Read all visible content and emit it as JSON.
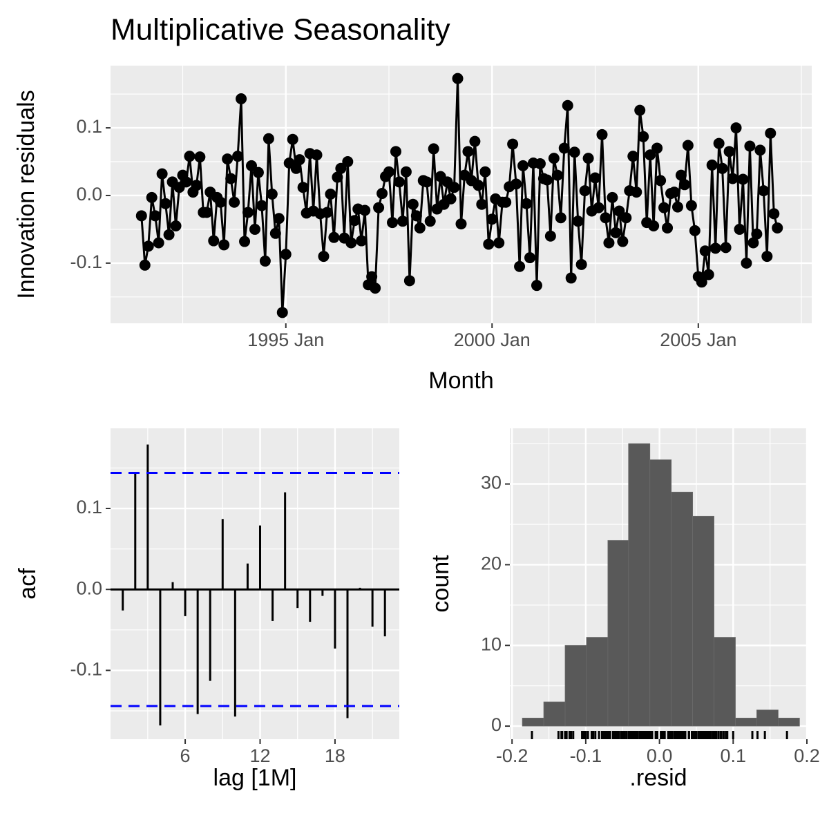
{
  "chart_data": [
    {
      "type": "line",
      "title": "Multiplicative Seasonality",
      "xlabel": "Month",
      "ylabel": "Innovation residuals",
      "color": "#000000",
      "x": [
        "1991 Jul",
        "1991 Aug",
        "1991 Sep",
        "1991 Oct",
        "1991 Nov",
        "1991 Dec",
        "1992 Jan",
        "1992 Feb",
        "1992 Mar",
        "1992 Apr",
        "1992 May",
        "1992 Jun",
        "1992 Jul",
        "1992 Aug",
        "1992 Sep",
        "1992 Oct",
        "1992 Nov",
        "1992 Dec",
        "1993 Jan",
        "1993 Feb",
        "1993 Mar",
        "1993 Apr",
        "1993 May",
        "1993 Jun",
        "1993 Jul",
        "1993 Aug",
        "1993 Sep",
        "1993 Oct",
        "1993 Nov",
        "1993 Dec",
        "1994 Jan",
        "1994 Feb",
        "1994 Mar",
        "1994 Apr",
        "1994 May",
        "1994 Jun",
        "1994 Jul",
        "1994 Aug",
        "1994 Sep",
        "1994 Oct",
        "1994 Nov",
        "1994 Dec",
        "1995 Jan",
        "1995 Feb",
        "1995 Mar",
        "1995 Apr",
        "1995 May",
        "1995 Jun",
        "1995 Jul",
        "1995 Aug",
        "1995 Sep",
        "1995 Oct",
        "1995 Nov",
        "1995 Dec",
        "1996 Jan",
        "1996 Feb",
        "1996 Mar",
        "1996 Apr",
        "1996 May",
        "1996 Jun",
        "1996 Jul",
        "1996 Aug",
        "1996 Sep",
        "1996 Oct",
        "1996 Nov",
        "1996 Dec",
        "1997 Jan",
        "1997 Feb",
        "1997 Mar",
        "1997 Apr",
        "1997 May",
        "1997 Jun",
        "1997 Jul",
        "1997 Aug",
        "1997 Sep",
        "1997 Oct",
        "1997 Nov",
        "1997 Dec",
        "1998 Jan",
        "1998 Feb",
        "1998 Mar",
        "1998 Apr",
        "1998 May",
        "1998 Jun",
        "1998 Jul",
        "1998 Aug",
        "1998 Sep",
        "1998 Oct",
        "1998 Nov",
        "1998 Dec",
        "1999 Jan",
        "1999 Feb",
        "1999 Mar",
        "1999 Apr",
        "1999 May",
        "1999 Jun",
        "1999 Jul",
        "1999 Aug",
        "1999 Sep",
        "1999 Oct",
        "1999 Nov",
        "1999 Dec",
        "2000 Jan",
        "2000 Feb",
        "2000 Mar",
        "2000 Apr",
        "2000 May",
        "2000 Jun",
        "2000 Jul",
        "2000 Aug",
        "2000 Sep",
        "2000 Oct",
        "2000 Nov",
        "2000 Dec",
        "2001 Jan",
        "2001 Feb",
        "2001 Mar",
        "2001 Apr",
        "2001 May",
        "2001 Jun",
        "2001 Jul",
        "2001 Aug",
        "2001 Sep",
        "2001 Oct",
        "2001 Nov",
        "2001 Dec",
        "2002 Jan",
        "2002 Feb",
        "2002 Mar",
        "2002 Apr",
        "2002 May",
        "2002 Jun",
        "2002 Jul",
        "2002 Aug",
        "2002 Sep",
        "2002 Oct",
        "2002 Nov",
        "2002 Dec",
        "2003 Jan",
        "2003 Feb",
        "2003 Mar",
        "2003 Apr",
        "2003 May",
        "2003 Jun",
        "2003 Jul",
        "2003 Aug",
        "2003 Sep",
        "2003 Oct",
        "2003 Nov",
        "2003 Dec",
        "2004 Jan",
        "2004 Feb",
        "2004 Mar",
        "2004 Apr",
        "2004 May",
        "2004 Jun",
        "2004 Jul",
        "2004 Aug",
        "2004 Sep",
        "2004 Oct",
        "2004 Nov",
        "2004 Dec",
        "2005 Jan",
        "2005 Feb",
        "2005 Mar",
        "2005 Apr",
        "2005 May",
        "2005 Jun",
        "2005 Jul",
        "2005 Aug",
        "2005 Sep",
        "2005 Oct",
        "2005 Nov",
        "2005 Dec",
        "2006 Jan",
        "2006 Feb",
        "2006 Mar",
        "2006 Apr",
        "2006 May",
        "2006 Jun",
        "2006 Jul",
        "2006 Aug",
        "2006 Sep",
        "2006 Oct",
        "2006 Nov",
        "2006 Dec"
      ],
      "values": [
        -0.03,
        -0.103,
        -0.075,
        -0.003,
        -0.03,
        -0.07,
        0.032,
        -0.012,
        -0.058,
        0.02,
        -0.045,
        0.012,
        0.03,
        0.02,
        0.058,
        0.005,
        0.015,
        0.057,
        -0.025,
        -0.025,
        0.005,
        -0.067,
        -0.003,
        -0.01,
        -0.073,
        0.054,
        0.025,
        -0.01,
        0.058,
        0.143,
        -0.068,
        -0.025,
        0.044,
        -0.05,
        0.034,
        -0.015,
        -0.097,
        0.084,
        0.002,
        -0.056,
        -0.034,
        -0.173,
        -0.087,
        0.048,
        0.083,
        0.04,
        0.053,
        0.012,
        -0.026,
        0.062,
        -0.023,
        0.06,
        -0.027,
        -0.09,
        -0.025,
        0.002,
        -0.062,
        0.027,
        0.04,
        -0.063,
        0.05,
        -0.07,
        -0.037,
        -0.02,
        -0.067,
        -0.022,
        -0.132,
        -0.12,
        -0.137,
        -0.018,
        0.003,
        0.028,
        0.035,
        -0.04,
        0.065,
        0.02,
        -0.038,
        0.035,
        -0.126,
        -0.013,
        -0.03,
        -0.048,
        0.022,
        0.02,
        -0.038,
        0.069,
        -0.02,
        0.028,
        -0.013,
        0.02,
        -0.005,
        0.012,
        0.173,
        -0.042,
        0.03,
        0.065,
        0.022,
        0.08,
        0.015,
        -0.013,
        0.035,
        -0.072,
        -0.035,
        -0.005,
        -0.07,
        -0.01,
        -0.01,
        0.013,
        0.076,
        0.017,
        -0.105,
        0.044,
        -0.012,
        -0.092,
        0.048,
        -0.133,
        0.047,
        0.025,
        0.023,
        -0.06,
        0.055,
        0.03,
        -0.033,
        0.07,
        0.133,
        -0.122,
        0.064,
        -0.038,
        -0.102,
        0.007,
        0.055,
        -0.023,
        0.026,
        -0.018,
        0.09,
        -0.033,
        -0.07,
        -0.003,
        -0.055,
        -0.023,
        -0.068,
        -0.033,
        0.007,
        0.058,
        0.005,
        0.126,
        0.087,
        -0.04,
        0.06,
        -0.045,
        0.07,
        0.022,
        -0.018,
        -0.048,
        0.003,
        0.005,
        -0.017,
        0.03,
        0.016,
        0.074,
        -0.015,
        -0.052,
        -0.12,
        -0.128,
        -0.082,
        -0.117,
        0.045,
        -0.078,
        0.077,
        0.04,
        -0.077,
        0.065,
        0.025,
        0.1,
        -0.05,
        0.024,
        -0.1,
        0.073,
        -0.07,
        -0.057,
        0.067,
        0.007,
        -0.09,
        0.092,
        -0.027,
        -0.048
      ],
      "xlim": [
        "1990 Oct",
        "2007 Oct"
      ],
      "xticks": [
        "1995 Jan",
        "2000 Jan",
        "2005 Jan"
      ],
      "ylim": [
        -0.189,
        0.192
      ],
      "yticks": [
        -0.1,
        {
          "value": 0,
          "label": "0.0"
        },
        0.1
      ],
      "grid": true
    },
    {
      "type": "acf",
      "xlabel": "lag [1M]",
      "ylabel": "acf",
      "color": "#000000",
      "x": [
        1,
        2,
        3,
        4,
        5,
        6,
        7,
        8,
        9,
        10,
        11,
        12,
        13,
        14,
        15,
        16,
        17,
        18,
        19,
        20,
        21,
        22
      ],
      "values": [
        -0.026,
        0.144,
        0.179,
        -0.168,
        0.009,
        -0.033,
        -0.154,
        -0.113,
        0.087,
        -0.157,
        0.032,
        0.079,
        -0.039,
        0.12,
        -0.023,
        -0.04,
        -0.008,
        -0.073,
        -0.159,
        0.002,
        -0.046,
        -0.058
      ],
      "conf_lines": [
        0.144,
        -0.144
      ],
      "conf_color": "#0000ff",
      "xlim": [
        0.02,
        23.15
      ],
      "xticks": [
        6,
        12,
        18
      ],
      "ylim": [
        -0.185,
        0.199
      ],
      "yticks": [
        -0.1,
        {
          "value": 0,
          "label": "0.0"
        },
        0.1
      ],
      "grid": true
    },
    {
      "type": "histogram",
      "xlabel": ".resid",
      "ylabel": "count",
      "color": "#595959",
      "rug": true,
      "bins": [
        -0.186,
        -0.157,
        -0.128,
        -0.099,
        -0.07,
        -0.042,
        -0.013,
        0.016,
        0.045,
        0.074,
        0.103,
        0.132,
        0.161,
        0.19
      ],
      "counts": [
        1,
        3,
        10,
        11,
        23,
        35,
        33,
        29,
        26,
        11,
        1,
        2,
        1
      ],
      "xlim": [
        -0.203,
        0.2
      ],
      "xticks": [
        -0.2,
        -0.1,
        {
          "value": 0,
          "label": "0.0"
        },
        0.1,
        0.2
      ],
      "ylim": [
        -1.62,
        36.9
      ],
      "yticks": [
        0,
        10,
        20,
        30
      ],
      "grid": true
    }
  ]
}
